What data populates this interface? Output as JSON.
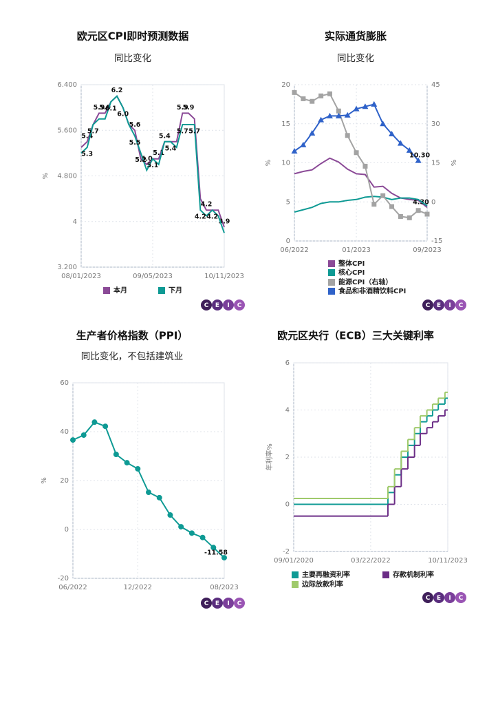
{
  "logo": [
    "C",
    "E",
    "I",
    "C"
  ],
  "chart_data": [
    {
      "type": "line",
      "title": "欧元区CPI即时预测数据",
      "subtitle": "同比变化",
      "ylabel": "%",
      "categories": [
        "08/01/2023",
        null,
        null,
        null,
        null,
        null,
        null,
        null,
        null,
        null,
        null,
        null,
        "09/05/2023",
        null,
        null,
        null,
        null,
        null,
        null,
        null,
        null,
        null,
        null,
        null,
        "10/11/2023"
      ],
      "ylim": [
        3.2,
        6.4
      ],
      "yticks": [
        {
          "value": 3.2,
          "label": "3.200"
        },
        4,
        {
          "value": 4.8,
          "label": "4.800"
        },
        {
          "value": 5.6,
          "label": "5.600"
        },
        {
          "value": 6.4,
          "label": "6.400"
        }
      ],
      "grid": true,
      "series": [
        {
          "name": "本月",
          "color": "#8b4a97",
          "values": [
            5.3,
            5.4,
            5.7,
            5.9,
            5.9,
            6.1,
            6.2,
            6.0,
            5.7,
            5.6,
            5.1,
            5.0,
            5.1,
            5.1,
            5.4,
            5.4,
            5.4,
            5.9,
            5.9,
            5.8,
            4.4,
            4.2,
            4.2,
            4.2,
            3.9
          ],
          "value_labels": [
            null,
            "5.4",
            null,
            "5.9",
            "5.9",
            null,
            "6.2",
            null,
            null,
            "5.6",
            null,
            "5.0",
            null,
            "5.1",
            "5.4",
            null,
            null,
            "5.9",
            "5.9",
            null,
            null,
            "4.2",
            null,
            null,
            "3.9"
          ]
        },
        {
          "name": "下月",
          "color": "#0e9a94",
          "values": [
            5.2,
            5.3,
            5.7,
            5.8,
            5.8,
            6.1,
            6.2,
            6.0,
            5.7,
            5.5,
            5.2,
            4.9,
            5.1,
            5.0,
            5.4,
            5.4,
            5.3,
            5.7,
            5.7,
            5.7,
            4.2,
            4.1,
            4.2,
            4.1,
            3.8
          ],
          "value_labels": [
            null,
            "5.3",
            "5.7",
            null,
            null,
            "6.1",
            null,
            "6.0",
            null,
            "5.5",
            "5.2",
            null,
            "5.1",
            null,
            null,
            "5.4",
            null,
            "5.7",
            null,
            "5.7",
            "4.2",
            null,
            "4.2",
            null,
            null
          ]
        }
      ]
    },
    {
      "type": "line",
      "title": "实际通货膨胀",
      "subtitle": "同比变化",
      "ylabel": "%",
      "y2label": "%",
      "categories": [
        "06/2022",
        null,
        null,
        null,
        null,
        null,
        null,
        "01/2023",
        null,
        null,
        null,
        null,
        null,
        null,
        null,
        "09/2023"
      ],
      "ylim": [
        0,
        20
      ],
      "yticks": [
        0,
        5,
        10,
        15,
        20
      ],
      "y2lim": [
        -15,
        45
      ],
      "y2ticks": [
        -15,
        0,
        15,
        30,
        45
      ],
      "grid": true,
      "series": [
        {
          "name": "整体CPI",
          "color": "#8b4a97",
          "values": [
            8.6,
            8.9,
            9.1,
            9.9,
            10.6,
            10.1,
            9.2,
            8.6,
            8.5,
            6.9,
            7.0,
            6.1,
            5.5,
            5.3,
            5.2,
            4.3
          ],
          "value_labels": [
            null,
            null,
            null,
            null,
            null,
            null,
            null,
            null,
            null,
            null,
            null,
            null,
            null,
            null,
            null,
            "4.30"
          ]
        },
        {
          "name": "核心CPI",
          "color": "#0e9a94",
          "values": [
            3.7,
            4.0,
            4.3,
            4.8,
            5.0,
            5.0,
            5.2,
            5.3,
            5.6,
            5.7,
            5.6,
            5.3,
            5.5,
            5.5,
            5.3,
            4.5
          ]
        },
        {
          "name": "能源CPI（右轴）",
          "color": "#a3a3a3",
          "axis": "y2",
          "marker": "square",
          "values": [
            42.0,
            39.6,
            38.6,
            40.7,
            41.5,
            34.9,
            25.5,
            18.9,
            13.7,
            -0.9,
            2.4,
            -1.8,
            -5.6,
            -6.1,
            -3.3,
            -4.7
          ]
        },
        {
          "name": "食品和非酒精饮料CPI",
          "color": "#2f62c9",
          "marker": "triangle",
          "values": [
            11.5,
            12.3,
            13.8,
            15.5,
            16.0,
            16.0,
            16.1,
            16.9,
            17.2,
            17.5,
            15.0,
            13.7,
            12.5,
            11.6,
            10.3,
            null
          ],
          "value_labels": [
            null,
            null,
            null,
            null,
            null,
            null,
            null,
            null,
            null,
            null,
            null,
            null,
            null,
            null,
            "10.30",
            null
          ]
        }
      ]
    },
    {
      "type": "line",
      "title": "生产者价格指数（PPI）",
      "subtitle": "同比变化，不包括建筑业",
      "ylabel": "%",
      "categories": [
        "06/2022",
        null,
        null,
        null,
        null,
        null,
        "12/2022",
        null,
        null,
        null,
        null,
        null,
        null,
        null,
        "08/2023"
      ],
      "ylim": [
        -20,
        60
      ],
      "yticks": [
        -20,
        0,
        20,
        40,
        60
      ],
      "grid": true,
      "series": [
        {
          "name": null,
          "color": "#0e9a94",
          "marker": "circle",
          "values": [
            36.6,
            38.6,
            43.9,
            42.2,
            30.7,
            27.3,
            24.8,
            15.2,
            13.0,
            5.9,
            1.1,
            -1.5,
            -3.3,
            -7.4,
            -11.58
          ],
          "value_labels": [
            null,
            null,
            null,
            null,
            null,
            null,
            null,
            null,
            null,
            null,
            null,
            null,
            null,
            null,
            "-11.58"
          ]
        }
      ]
    },
    {
      "type": "step",
      "title": "欧元区央行（ECB）三大关键利率",
      "ylabel": "年利率%",
      "x": [
        "09/01/2020",
        "07/27/2022",
        "09/14/2022",
        "11/02/2022",
        "12/21/2022",
        "02/08/2023",
        "03/22/2023",
        "05/10/2023",
        "06/21/2023",
        "08/02/2023",
        "09/20/2023",
        "10/11/2023"
      ],
      "xlim": [
        "09/01/2020",
        "10/11/2023"
      ],
      "xticks": [
        "09/01/2020",
        "03/22/2022",
        "10/11/2023"
      ],
      "ylim": [
        -2,
        6
      ],
      "yticks": [
        -2,
        0,
        2,
        4,
        6
      ],
      "grid": true,
      "series": [
        {
          "name": "主要再融资利率",
          "color": "#0e9a94",
          "values": [
            0,
            0.5,
            1.25,
            2.0,
            2.5,
            3.0,
            3.5,
            3.75,
            4.0,
            4.25,
            4.5,
            4.5
          ]
        },
        {
          "name": "存款机制利率",
          "color": "#6b2d86",
          "values": [
            -0.5,
            0,
            0.75,
            1.5,
            2.0,
            2.5,
            3.0,
            3.25,
            3.5,
            3.75,
            4.0,
            4.0
          ]
        },
        {
          "name": "边际放款利率",
          "color": "#9fca6b",
          "values": [
            0.25,
            0.75,
            1.5,
            2.25,
            2.75,
            3.25,
            3.75,
            4.0,
            4.25,
            4.5,
            4.75,
            4.75
          ]
        }
      ]
    }
  ]
}
